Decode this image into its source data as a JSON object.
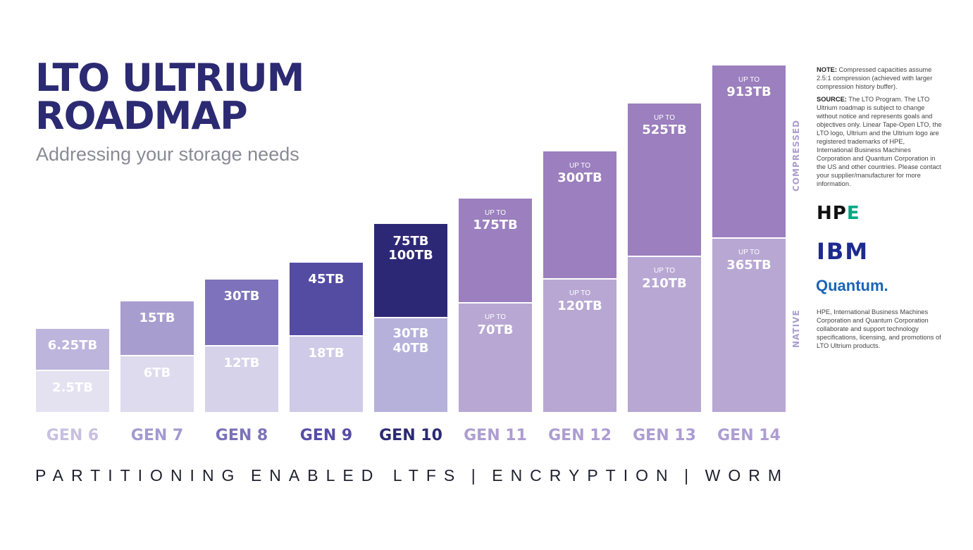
{
  "title_line1": "LTO ULTRIUM",
  "title_line2": "ROADMAP",
  "subtitle": "Addressing your storage needs",
  "chart_data": {
    "type": "bar",
    "stacked": true,
    "categories": [
      "GEN 6",
      "GEN 7",
      "GEN 8",
      "GEN 9",
      "GEN 10",
      "GEN 11",
      "GEN 12",
      "GEN 13",
      "GEN 14"
    ],
    "series": [
      {
        "name": "NATIVE",
        "values": [
          2.5,
          6,
          12,
          18,
          40,
          70,
          120,
          210,
          365
        ]
      },
      {
        "name": "COMPRESSED",
        "values": [
          6.25,
          15,
          30,
          45,
          100,
          175,
          300,
          525,
          913
        ]
      }
    ],
    "native_labels": [
      "2.5TB",
      "6TB",
      "12TB",
      "18TB",
      "30TB 40TB",
      "70TB",
      "120TB",
      "210TB",
      "365TB"
    ],
    "compressed_labels": [
      "6.25TB",
      "15TB",
      "30TB",
      "45TB",
      "75TB 100TB",
      "175TB",
      "300TB",
      "525TB",
      "913TB"
    ],
    "up_to_shown": [
      false,
      false,
      false,
      false,
      false,
      true,
      true,
      true,
      true
    ],
    "up_to_text": "UP TO",
    "scale": "non-linear (pictorial)",
    "legend": {
      "native": "NATIVE",
      "compressed": "COMPRESSED"
    },
    "colors": {
      "native": [
        "#e4e1f1",
        "#dedbee",
        "#d6d2ea",
        "#cfcae7",
        "#b5b1db",
        "#b8a7d3",
        "#b8a7d3",
        "#b8a7d3",
        "#b8a7d3"
      ],
      "compressed": [
        "#bdb5dc",
        "#a79dcf",
        "#7d72bb",
        "#544ba3",
        "#2d2875",
        "#9b7fbe",
        "#9b7fbe",
        "#9b7fbe",
        "#9b7fbe"
      ],
      "gen_label": [
        "#c7c0e0",
        "#a39ad0",
        "#7b72b8",
        "#564da6",
        "#2b2a72",
        "#ad9dd1",
        "#ad9dd1",
        "#ad9dd1",
        "#ad9dd1"
      ]
    }
  },
  "footer": [
    "PARTITIONING",
    "ENABLED LTFS",
    "|",
    "ENCRYPTION",
    "|",
    "WORM"
  ],
  "notes": {
    "note_label": "NOTE:",
    "note_text": "Compressed capacities assume 2.5:1 compression (achieved with larger compression history buffer).",
    "source_label": "SOURCE:",
    "source_text": "The LTO Program. The LTO Ultrium roadmap is subject to change without notice and represents goals and objectives only. Linear Tape-Open LTO, the LTO logo, Ultrium and the Ultrium logo are registered trademarks of HPE, International Business Machines Corporation and Quantum Corporation in the US and other countries. Please contact your supplier/manufacturer for more information."
  },
  "logos": {
    "hpe_left": "HP",
    "hpe_right": "E",
    "ibm": "IBM",
    "quantum": "Quantum."
  },
  "side_text": "HPE, International Business Machines Corporation and Quantum Corporation collaborate and support technology specifications, licensing, and promotions of LTO Ultrium products."
}
